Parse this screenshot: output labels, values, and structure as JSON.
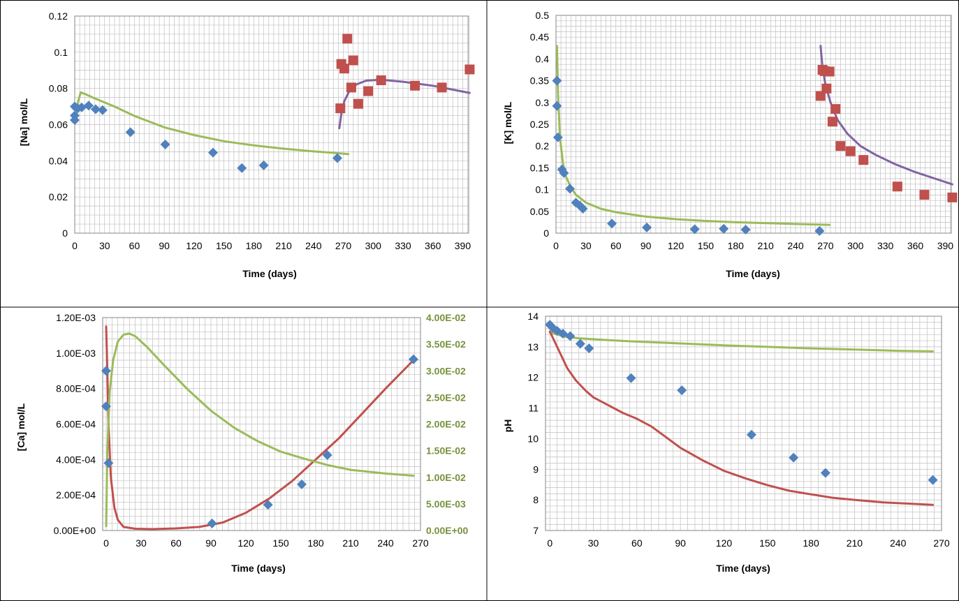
{
  "colors": {
    "green": "#9BBB59",
    "purple": "#8064A2",
    "red": "#C0504D",
    "blue": "#4F81BD",
    "grid": "#BFBFBF",
    "axis": "#868686",
    "cell_border": "#000000"
  },
  "chart_data": [
    {
      "id": "na",
      "type": "scatter",
      "xlabel": "Time (days)",
      "ylabel": "[Na] mol/L",
      "xlim": [
        0,
        396
      ],
      "ylim": [
        0,
        0.12
      ],
      "x_ticks": [
        "0",
        "30",
        "60",
        "90",
        "120",
        "150",
        "180",
        "210",
        "240",
        "270",
        "300",
        "330",
        "360",
        "390"
      ],
      "y_ticks": [
        "0",
        "0.02",
        "0.04",
        "0.06",
        "0.08",
        "0.1",
        "0.12"
      ],
      "grid": true,
      "series": [
        {
          "kind": "points",
          "marker": "diamond",
          "color": "blue",
          "points": [
            [
              0,
              0.0625
            ],
            [
              0,
              0.065
            ],
            [
              0,
              0.07
            ],
            [
              3,
              0.069
            ],
            [
              7,
              0.0695
            ],
            [
              14,
              0.0705
            ],
            [
              21,
              0.0685
            ],
            [
              28,
              0.068
            ],
            [
              56,
              0.0558
            ],
            [
              91,
              0.049
            ],
            [
              139,
              0.0445
            ],
            [
              168,
              0.036
            ],
            [
              190,
              0.0375
            ],
            [
              264,
              0.0415
            ]
          ]
        },
        {
          "kind": "points",
          "marker": "square",
          "color": "red",
          "points": [
            [
              267,
              0.069
            ],
            [
              268,
              0.0935
            ],
            [
              271,
              0.091
            ],
            [
              274,
              0.1075
            ],
            [
              278,
              0.0805
            ],
            [
              280,
              0.0955
            ],
            [
              285,
              0.0715
            ],
            [
              295,
              0.0785
            ],
            [
              308,
              0.0845
            ],
            [
              342,
              0.0815
            ],
            [
              369,
              0.0805
            ],
            [
              397,
              0.0905
            ]
          ]
        },
        {
          "kind": "line",
          "color": "green",
          "points": [
            [
              1,
              0.061
            ],
            [
              3,
              0.072
            ],
            [
              6,
              0.0778
            ],
            [
              10,
              0.077
            ],
            [
              20,
              0.0745
            ],
            [
              40,
              0.07
            ],
            [
              60,
              0.0648
            ],
            [
              90,
              0.0585
            ],
            [
              120,
              0.0542
            ],
            [
              150,
              0.0508
            ],
            [
              180,
              0.0485
            ],
            [
              210,
              0.0467
            ],
            [
              240,
              0.0452
            ],
            [
              255,
              0.0446
            ],
            [
              275,
              0.0437
            ]
          ]
        },
        {
          "kind": "line",
          "color": "purple",
          "points": [
            [
              266,
              0.058
            ],
            [
              268,
              0.066
            ],
            [
              271,
              0.073
            ],
            [
              276,
              0.0785
            ],
            [
              283,
              0.0822
            ],
            [
              293,
              0.0843
            ],
            [
              308,
              0.0848
            ],
            [
              330,
              0.0837
            ],
            [
              360,
              0.0815
            ],
            [
              397,
              0.0775
            ]
          ]
        }
      ]
    },
    {
      "id": "k",
      "type": "scatter",
      "xlabel": "Time (days)",
      "ylabel": "[K] mol/L",
      "xlim": [
        0,
        396
      ],
      "ylim": [
        0,
        0.5
      ],
      "x_ticks": [
        "0",
        "30",
        "60",
        "90",
        "120",
        "150",
        "180",
        "210",
        "240",
        "270",
        "300",
        "330",
        "360",
        "390"
      ],
      "y_ticks": [
        "0",
        "0.05",
        "0.1",
        "0.15",
        "0.2",
        "0.25",
        "0.3",
        "0.35",
        "0.4",
        "0.45",
        "0.5"
      ],
      "grid": true,
      "series": [
        {
          "kind": "points",
          "marker": "diamond",
          "color": "blue",
          "points": [
            [
              1,
              0.35
            ],
            [
              1,
              0.292
            ],
            [
              2,
              0.22
            ],
            [
              6,
              0.146
            ],
            [
              8,
              0.138
            ],
            [
              14,
              0.102
            ],
            [
              20,
              0.07
            ],
            [
              24,
              0.063
            ],
            [
              27,
              0.056
            ],
            [
              56,
              0.022
            ],
            [
              91,
              0.013
            ],
            [
              139,
              0.009
            ],
            [
              168,
              0.01
            ],
            [
              190,
              0.008
            ],
            [
              264,
              0.005
            ]
          ]
        },
        {
          "kind": "points",
          "marker": "square",
          "color": "red",
          "points": [
            [
              265,
              0.315
            ],
            [
              267,
              0.375
            ],
            [
              269,
              0.372
            ],
            [
              271,
              0.332
            ],
            [
              274,
              0.371
            ],
            [
              277,
              0.256
            ],
            [
              280,
              0.285
            ],
            [
              285,
              0.2
            ],
            [
              295,
              0.188
            ],
            [
              308,
              0.168
            ],
            [
              342,
              0.107
            ],
            [
              369,
              0.088
            ],
            [
              397,
              0.082
            ]
          ]
        },
        {
          "kind": "line",
          "color": "green",
          "points": [
            [
              1,
              0.43
            ],
            [
              2,
              0.32
            ],
            [
              4,
              0.22
            ],
            [
              7,
              0.16
            ],
            [
              10,
              0.13
            ],
            [
              15,
              0.105
            ],
            [
              20,
              0.088
            ],
            [
              30,
              0.07
            ],
            [
              45,
              0.056
            ],
            [
              60,
              0.048
            ],
            [
              90,
              0.038
            ],
            [
              120,
              0.032
            ],
            [
              150,
              0.028
            ],
            [
              180,
              0.025
            ],
            [
              210,
              0.023
            ],
            [
              240,
              0.021
            ],
            [
              274,
              0.019
            ]
          ]
        },
        {
          "kind": "line",
          "color": "purple",
          "points": [
            [
              265,
              0.43
            ],
            [
              267,
              0.38
            ],
            [
              270,
              0.34
            ],
            [
              275,
              0.3
            ],
            [
              282,
              0.26
            ],
            [
              292,
              0.228
            ],
            [
              305,
              0.2
            ],
            [
              320,
              0.18
            ],
            [
              340,
              0.158
            ],
            [
              360,
              0.14
            ],
            [
              380,
              0.125
            ],
            [
              397,
              0.112
            ]
          ]
        }
      ]
    },
    {
      "id": "ca",
      "type": "scatter",
      "xlabel": "Time (days)",
      "ylabel": "[Ca] mol/L",
      "xlim": [
        -3,
        270
      ],
      "ylim": [
        0,
        0.0012
      ],
      "y2lim": [
        0,
        0.04
      ],
      "x_ticks": [
        "0",
        "30",
        "60",
        "90",
        "120",
        "150",
        "180",
        "210",
        "240",
        "270"
      ],
      "y_ticks": [
        "0.00E+00",
        "2.00E-04",
        "4.00E-04",
        "6.00E-04",
        "8.00E-04",
        "1.00E-03",
        "1.20E-03"
      ],
      "y2_ticks": [
        "0.00E+00",
        "5.00E-03",
        "1.00E-02",
        "1.50E-02",
        "2.00E-02",
        "2.50E-02",
        "3.00E-02",
        "3.50E-02",
        "4.00E-02"
      ],
      "grid": true,
      "series": [
        {
          "kind": "points",
          "marker": "diamond",
          "color": "blue",
          "points": [
            [
              0,
              0.0009
            ],
            [
              0,
              0.0007
            ],
            [
              2,
              0.00038
            ],
            [
              91,
              4e-05
            ],
            [
              139,
              0.000145
            ],
            [
              168,
              0.00026
            ],
            [
              190,
              0.000425
            ],
            [
              264,
              0.000965
            ]
          ]
        },
        {
          "kind": "line",
          "color": "red",
          "axis": "y",
          "points": [
            [
              0,
              0.00115
            ],
            [
              1,
              0.0009
            ],
            [
              2,
              0.0006
            ],
            [
              4,
              0.0003
            ],
            [
              7,
              0.00013
            ],
            [
              10,
              6e-05
            ],
            [
              15,
              2e-05
            ],
            [
              25,
              1e-05
            ],
            [
              40,
              8e-06
            ],
            [
              60,
              1.2e-05
            ],
            [
              80,
              2e-05
            ],
            [
              100,
              4.5e-05
            ],
            [
              120,
              0.0001
            ],
            [
              140,
              0.00018
            ],
            [
              160,
              0.00028
            ],
            [
              180,
              0.0004
            ],
            [
              200,
              0.00052
            ],
            [
              220,
              0.00066
            ],
            [
              240,
              0.0008
            ],
            [
              264,
              0.00096
            ]
          ]
        },
        {
          "kind": "line",
          "color": "green",
          "axis": "y2",
          "points": [
            [
              0,
              0.0008
            ],
            [
              1,
              0.015
            ],
            [
              3,
              0.026
            ],
            [
              6,
              0.032
            ],
            [
              10,
              0.0355
            ],
            [
              15,
              0.0368
            ],
            [
              20,
              0.037
            ],
            [
              25,
              0.0365
            ],
            [
              35,
              0.0345
            ],
            [
              50,
              0.031
            ],
            [
              70,
              0.0265
            ],
            [
              90,
              0.0225
            ],
            [
              110,
              0.0193
            ],
            [
              130,
              0.0168
            ],
            [
              150,
              0.0148
            ],
            [
              170,
              0.0135
            ],
            [
              190,
              0.0123
            ],
            [
              210,
              0.0114
            ],
            [
              240,
              0.0107
            ],
            [
              264,
              0.0103
            ]
          ]
        }
      ]
    },
    {
      "id": "ph",
      "type": "scatter",
      "xlabel": "Time (days)",
      "ylabel": "pH",
      "xlim": [
        -3,
        270
      ],
      "ylim": [
        7,
        14
      ],
      "x_ticks": [
        "0",
        "30",
        "60",
        "90",
        "120",
        "150",
        "180",
        "210",
        "240",
        "270"
      ],
      "y_ticks": [
        "7",
        "8",
        "9",
        "10",
        "11",
        "12",
        "13",
        "14"
      ],
      "grid": true,
      "series": [
        {
          "kind": "points",
          "marker": "diamond",
          "color": "blue",
          "points": [
            [
              0,
              13.72
            ],
            [
              2,
              13.62
            ],
            [
              5,
              13.52
            ],
            [
              9,
              13.43
            ],
            [
              14,
              13.35
            ],
            [
              21,
              13.1
            ],
            [
              27,
              12.95
            ],
            [
              56,
              11.98
            ],
            [
              91,
              11.58
            ],
            [
              139,
              10.13
            ],
            [
              168,
              9.38
            ],
            [
              190,
              8.88
            ],
            [
              264,
              8.65
            ]
          ]
        },
        {
          "kind": "line",
          "color": "green",
          "points": [
            [
              0,
              13.48
            ],
            [
              10,
              13.33
            ],
            [
              20,
              13.28
            ],
            [
              40,
              13.22
            ],
            [
              60,
              13.17
            ],
            [
              90,
              13.11
            ],
            [
              120,
              13.05
            ],
            [
              150,
              13.0
            ],
            [
              180,
              12.95
            ],
            [
              210,
              12.91
            ],
            [
              240,
              12.87
            ],
            [
              264,
              12.85
            ]
          ]
        },
        {
          "kind": "line",
          "color": "red",
          "points": [
            [
              0,
              13.5
            ],
            [
              3,
              13.2
            ],
            [
              7,
              12.8
            ],
            [
              12,
              12.3
            ],
            [
              18,
              11.9
            ],
            [
              25,
              11.55
            ],
            [
              30,
              11.35
            ],
            [
              40,
              11.1
            ],
            [
              50,
              10.85
            ],
            [
              60,
              10.65
            ],
            [
              70,
              10.4
            ],
            [
              80,
              10.05
            ],
            [
              90,
              9.7
            ],
            [
              105,
              9.3
            ],
            [
              120,
              8.95
            ],
            [
              135,
              8.7
            ],
            [
              150,
              8.48
            ],
            [
              165,
              8.3
            ],
            [
              180,
              8.18
            ],
            [
              195,
              8.07
            ],
            [
              210,
              8.0
            ],
            [
              230,
              7.92
            ],
            [
              250,
              7.87
            ],
            [
              264,
              7.84
            ]
          ]
        }
      ]
    }
  ]
}
